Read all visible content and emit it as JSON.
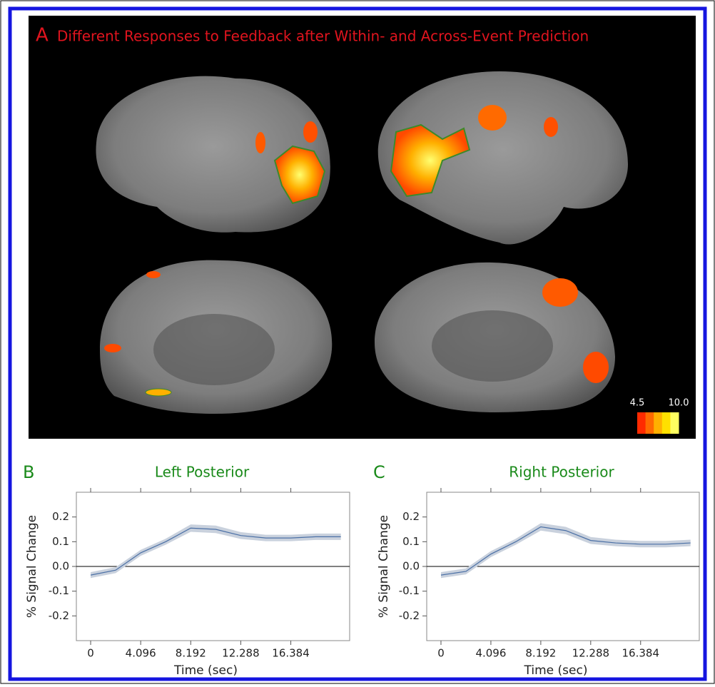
{
  "panel_labels": [
    "A",
    "B",
    "C"
  ],
  "panel_a_title": "Different Responses to Feedback after Within- and Across-Event Prediction",
  "colorbar": {
    "ticks": [
      4.5,
      {
        "value": 10,
        "label": "10.0"
      }
    ],
    "colors": [
      "#ff2a00",
      "#ff6a00",
      "#ffb000",
      "#ffe000",
      "#ffff60"
    ]
  },
  "chart_data": [
    {
      "type": "line",
      "title": "Left Posterior",
      "x_label": "Time (sec)",
      "y_label": "% Signal Change",
      "x": [
        0,
        2.048,
        4.096,
        6.144,
        8.192,
        10.24,
        12.288,
        14.336,
        16.384,
        18.432,
        20.48
      ],
      "series": [
        {
          "color": "#4a6fa5",
          "band_color": "#c9d1dd",
          "values": [
            -0.035,
            -0.015,
            0.055,
            0.1,
            0.155,
            0.15,
            0.125,
            0.115,
            0.115,
            0.12,
            0.12
          ],
          "errors": [
            0.012,
            0.012,
            0.012,
            0.012,
            0.015,
            0.015,
            0.014,
            0.013,
            0.013,
            0.013,
            0.013
          ]
        }
      ],
      "xlim": [
        -1.17,
        21.2
      ],
      "ylim": [
        -0.3,
        0.3
      ],
      "xticks": [
        0,
        4.096,
        8.192,
        12.288,
        16.384
      ],
      "yticks": [
        0.2,
        0.1,
        {
          "value": 0,
          "label": "0.0"
        },
        -0.1,
        -0.2
      ]
    },
    {
      "type": "line",
      "title": "Right Posterior",
      "x_label": "Time (sec)",
      "y_label": "% Signal Change",
      "x": [
        0,
        2.048,
        4.096,
        6.144,
        8.192,
        10.24,
        12.288,
        14.336,
        16.384,
        18.432,
        20.48
      ],
      "series": [
        {
          "color": "#4a6fa5",
          "band_color": "#c9d1dd",
          "values": [
            -0.035,
            -0.02,
            0.05,
            0.1,
            0.16,
            0.145,
            0.105,
            0.095,
            0.09,
            0.09,
            0.095
          ],
          "errors": [
            0.012,
            0.012,
            0.012,
            0.012,
            0.015,
            0.015,
            0.014,
            0.013,
            0.013,
            0.013,
            0.013
          ]
        }
      ],
      "xlim": [
        -1.17,
        21.2
      ],
      "ylim": [
        -0.3,
        0.3
      ],
      "xticks": [
        0,
        4.096,
        8.192,
        12.288,
        16.384
      ],
      "yticks": [
        0.2,
        0.1,
        {
          "value": 0,
          "label": "0.0"
        },
        -0.1,
        -0.2
      ]
    }
  ]
}
